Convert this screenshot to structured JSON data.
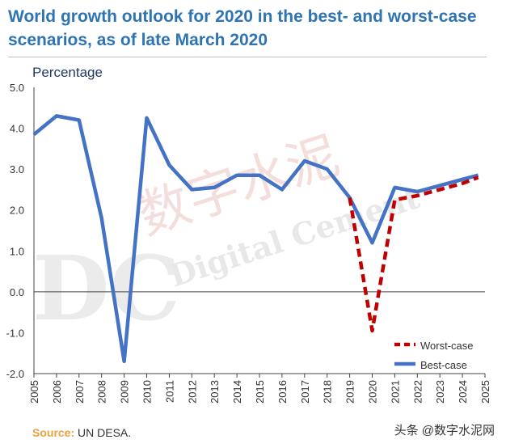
{
  "title": "World growth outlook for 2020 in the best- and worst-case scenarios, as of late March 2020",
  "source": {
    "label": "Source:",
    "text": "UN DESA."
  },
  "credit": "头条 @数字水泥网",
  "watermark": {
    "logo": "DC",
    "cn": "数字水泥",
    "en": "Digital Cement"
  },
  "chart_data": {
    "type": "line",
    "title": "World growth outlook for 2020 in the best- and worst-case scenarios, as of late March 2020",
    "xlabel": "",
    "ylabel": "Percentage",
    "ylim": [
      -2.0,
      5.0
    ],
    "xlim": [
      2005,
      2025
    ],
    "yticks": [
      "5.0",
      "4.0",
      "3.0",
      "2.0",
      "1.0",
      "0.0",
      "-1.0",
      "-2.0"
    ],
    "xticks": [
      "2005",
      "2006",
      "2007",
      "2008",
      "2009",
      "2010",
      "2011",
      "2012",
      "2013",
      "2014",
      "2015",
      "2016",
      "2017",
      "2018",
      "2019",
      "2020",
      "2021",
      "2022",
      "2023",
      "2024",
      "2025"
    ],
    "legend_position": "bottom-right",
    "grid": false,
    "series": [
      {
        "name": "Best-case",
        "color": "#4472c4",
        "style": "solid",
        "x": [
          2005,
          2006,
          2007,
          2008,
          2009,
          2010,
          2011,
          2012,
          2013,
          2014,
          2015,
          2016,
          2017,
          2018,
          2019,
          2020,
          2021,
          2022,
          2023,
          2024,
          2024.7
        ],
        "y": [
          3.85,
          4.3,
          4.2,
          1.8,
          -1.7,
          4.25,
          3.1,
          2.5,
          2.55,
          2.85,
          2.85,
          2.5,
          3.2,
          3.0,
          2.3,
          1.2,
          2.55,
          2.45,
          2.6,
          2.75,
          2.85
        ]
      },
      {
        "name": "Worst-case",
        "color": "#c00000",
        "style": "dashed",
        "x": [
          2019,
          2020,
          2021,
          2022,
          2023,
          2024,
          2024.7
        ],
        "y": [
          2.3,
          -0.95,
          2.25,
          2.35,
          2.5,
          2.65,
          2.8
        ]
      }
    ]
  }
}
